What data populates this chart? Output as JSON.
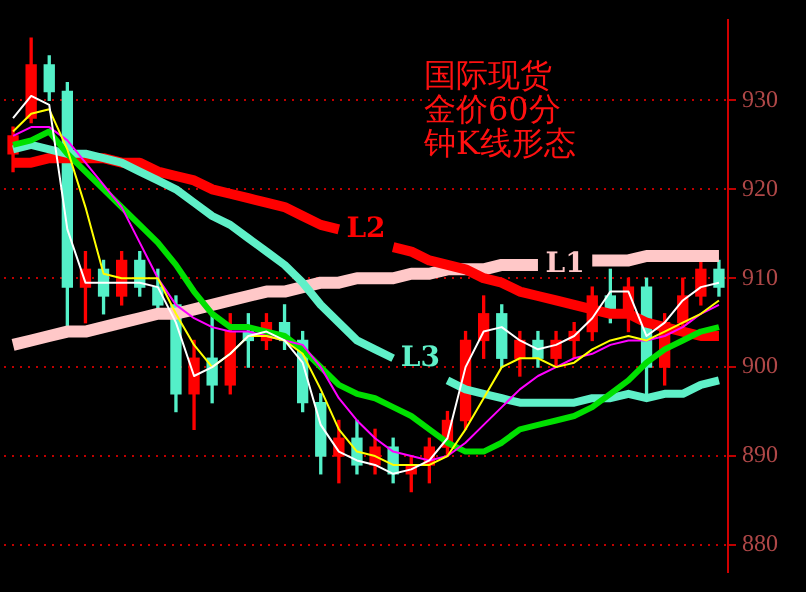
{
  "chart_data": {
    "type": "candlestick",
    "title": "国际现货金价60分钟K线形态",
    "categories": [
      null,
      null,
      null,
      null,
      null,
      null,
      null,
      null,
      null,
      null,
      null,
      null,
      null,
      null,
      null,
      null,
      null,
      null,
      null,
      null,
      null,
      null,
      null,
      null,
      null,
      null,
      null,
      null,
      null,
      null,
      null,
      null,
      null,
      null,
      null,
      null,
      null,
      null,
      null,
      null
    ],
    "ohlc": [
      [
        924,
        927,
        922,
        926
      ],
      [
        928,
        937,
        927.5,
        934
      ],
      [
        934,
        935,
        930,
        931
      ],
      [
        931,
        932,
        904,
        909
      ],
      [
        909,
        913,
        905,
        911
      ],
      [
        911,
        912,
        906,
        908
      ],
      [
        908,
        913,
        907,
        912
      ],
      [
        912,
        913,
        908,
        909
      ],
      [
        909,
        911,
        906,
        907
      ],
      [
        907,
        908,
        895,
        897
      ],
      [
        897,
        903,
        893,
        901
      ],
      [
        901,
        906,
        896,
        898
      ],
      [
        898,
        906,
        897,
        904
      ],
      [
        904,
        906,
        900,
        903
      ],
      [
        903,
        906,
        902,
        905
      ],
      [
        905,
        907,
        902,
        903
      ],
      [
        903,
        904,
        895,
        896
      ],
      [
        896,
        897,
        888,
        890
      ],
      [
        890,
        894,
        887,
        892
      ],
      [
        892,
        894,
        888,
        889
      ],
      [
        889,
        893,
        888,
        891
      ],
      [
        891,
        892,
        887,
        888
      ],
      [
        888,
        890,
        886,
        889
      ],
      [
        889,
        892,
        887,
        891
      ],
      [
        891,
        895,
        890,
        894
      ],
      [
        894,
        904,
        893,
        903
      ],
      [
        903,
        908,
        901,
        906
      ],
      [
        906,
        907,
        900,
        901
      ],
      [
        901,
        904,
        899,
        903
      ],
      [
        903,
        904,
        900,
        901
      ],
      [
        901,
        904,
        900,
        903
      ],
      [
        903,
        905,
        901,
        904
      ],
      [
        904,
        909,
        903,
        908
      ],
      [
        908,
        911,
        905,
        906
      ],
      [
        906,
        910,
        904,
        909
      ],
      [
        909,
        910,
        897,
        900
      ],
      [
        900,
        906,
        898,
        905
      ],
      [
        905,
        910,
        904,
        908
      ],
      [
        908,
        912,
        907,
        911
      ],
      [
        911,
        912,
        908,
        909
      ]
    ],
    "colors": [
      "#ff0000",
      "#ff0000",
      "#54f0c8",
      "#54f0c8",
      "#ff0000",
      "#54f0c8",
      "#ff0000",
      "#54f0c8",
      "#54f0c8",
      "#54f0c8",
      "#ff0000",
      "#54f0c8",
      "#ff0000",
      "#54f0c8",
      "#ff0000",
      "#54f0c8",
      "#54f0c8",
      "#54f0c8",
      "#ff0000",
      "#54f0c8",
      "#ff0000",
      "#54f0c8",
      "#ff0000",
      "#ff0000",
      "#ff0000",
      "#ff0000",
      "#ff0000",
      "#54f0c8",
      "#ff0000",
      "#54f0c8",
      "#ff0000",
      "#ff0000",
      "#ff0000",
      "#54f0c8",
      "#ff0000",
      "#54f0c8",
      "#ff0000",
      "#ff0000",
      "#ff0000",
      "#54f0c8"
    ],
    "series": [
      {
        "type": "line",
        "name": "L1",
        "color": "#ffc8c8",
        "values": [
          902.5,
          903,
          903.5,
          904,
          904,
          904.5,
          905,
          905.5,
          906,
          906,
          906.5,
          907,
          907.5,
          908,
          908.5,
          908.5,
          909,
          909.5,
          909.5,
          910,
          910,
          910,
          910.5,
          910.5,
          911,
          911,
          911,
          911.5,
          911.5,
          911.5,
          null,
          null,
          912,
          912,
          912,
          912.5,
          912.5,
          912.5,
          912.5,
          912.5
        ]
      },
      {
        "type": "line",
        "name": "L2",
        "color": "#ff0000",
        "values": [
          923,
          923,
          923.5,
          923.5,
          923.5,
          923.5,
          923,
          923,
          922,
          921.5,
          921,
          920,
          919.5,
          919,
          918.5,
          918,
          917,
          916,
          915.5,
          null,
          null,
          913.5,
          913,
          912,
          911.5,
          911,
          910,
          909.5,
          908.5,
          908,
          907.5,
          907,
          906.5,
          906,
          906,
          905,
          904.5,
          904,
          903.5,
          903.5
        ]
      },
      {
        "type": "line",
        "name": "L3",
        "color": "#5ff0c8",
        "values": [
          924.5,
          925,
          924.5,
          924,
          924,
          923.5,
          923,
          922,
          921,
          920,
          918.5,
          917,
          916,
          914.5,
          913,
          911.5,
          909.5,
          907,
          905,
          903,
          902,
          901,
          null,
          null,
          898.5,
          897.5,
          897,
          896.5,
          896,
          896,
          896,
          896,
          896.5,
          896.5,
          897,
          896.5,
          897,
          897,
          898,
          898.5
        ]
      },
      {
        "type": "line",
        "color": "#00e000",
        "values": [
          925,
          925.5,
          926.5,
          924,
          922,
          920,
          918,
          916,
          914,
          911.5,
          908.5,
          906,
          904.5,
          904.5,
          904,
          903.5,
          902,
          900,
          898,
          897,
          896.5,
          895.5,
          894.5,
          893,
          891.5,
          890.5,
          890.5,
          891.5,
          893,
          893.5,
          894,
          894.5,
          895.5,
          897,
          898.5,
          900.5,
          902,
          903,
          904,
          904.5
        ]
      },
      {
        "type": "line",
        "color": "#ff00ff",
        "values": [
          926,
          927,
          927,
          925.5,
          923,
          920.5,
          918,
          914,
          910,
          907,
          905.5,
          904.5,
          904,
          904,
          903.5,
          903,
          902.5,
          900,
          896.5,
          894,
          892,
          890.5,
          890,
          889.5,
          890,
          891.5,
          893.5,
          895.5,
          897.5,
          899,
          900,
          901,
          901.5,
          902.5,
          903,
          903,
          903.5,
          904.5,
          906,
          907
        ]
      },
      {
        "type": "line",
        "color": "#ffff00",
        "values": [
          926.5,
          928.5,
          929,
          924.5,
          918,
          910.5,
          910,
          910,
          910,
          906,
          902.5,
          900,
          901.5,
          903.5,
          903.5,
          903,
          901.5,
          897.5,
          893,
          890.5,
          890,
          889,
          889,
          889,
          890,
          893,
          896.5,
          900,
          901,
          901,
          900,
          900.5,
          902,
          903,
          903.5,
          903,
          904,
          905,
          906,
          907.5
        ]
      },
      {
        "type": "line",
        "color": "#ffffff",
        "values": [
          928,
          930.5,
          929.5,
          915.5,
          909.5,
          909.5,
          909.5,
          909.5,
          909,
          905,
          899,
          900,
          901.5,
          903.5,
          904,
          903,
          900.5,
          893.5,
          890.5,
          889.5,
          889,
          888,
          888.5,
          889.5,
          892,
          900,
          904,
          904.5,
          903,
          902,
          902.5,
          903.5,
          905.5,
          908.5,
          908.5,
          903.5,
          905,
          907.5,
          909,
          909.5
        ]
      }
    ],
    "ylim": [
      877,
      939
    ],
    "yticks": [
      880,
      890,
      900,
      910,
      920,
      930
    ],
    "grid": "y",
    "tick_labels": "y",
    "marker": "none"
  }
}
